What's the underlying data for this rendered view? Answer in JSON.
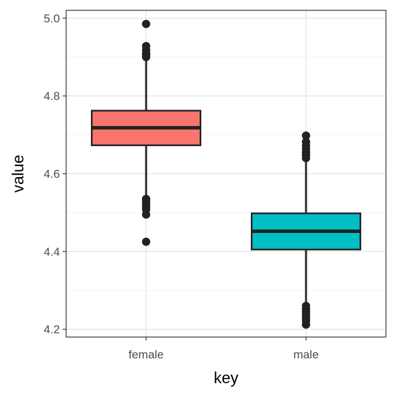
{
  "chart_data": {
    "type": "boxplot",
    "title": "",
    "xlabel": "key",
    "ylabel": "value",
    "ylim": [
      4.18,
      5.02
    ],
    "yticks": [
      "4.2",
      "4.4",
      "4.6",
      "4.8",
      "5.0"
    ],
    "grid": true,
    "legend": "none",
    "categories": [
      "female",
      "male"
    ],
    "boxes": [
      {
        "category": "female",
        "color": "#F8766D",
        "whisker_low": 4.54,
        "q1": 4.673,
        "median": 4.718,
        "q3": 4.762,
        "whisker_high": 4.895,
        "outliers": [
          4.425,
          4.495,
          4.508,
          4.515,
          4.522,
          4.53,
          4.535,
          4.9,
          4.905,
          4.91,
          4.918,
          4.928,
          4.985
        ]
      },
      {
        "category": "male",
        "color": "#00BFC4",
        "whisker_low": 4.27,
        "q1": 4.405,
        "median": 4.452,
        "q3": 4.498,
        "whisker_high": 4.635,
        "outliers": [
          4.212,
          4.222,
          4.23,
          4.238,
          4.245,
          4.252,
          4.26,
          4.64,
          4.648,
          4.655,
          4.663,
          4.672,
          4.682,
          4.698
        ]
      }
    ]
  }
}
